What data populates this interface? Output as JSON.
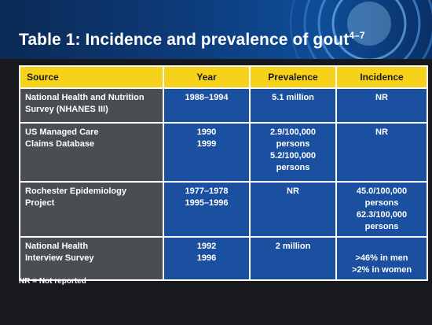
{
  "title": "Table 1: Incidence and prevalence of gout",
  "title_superscript": "4–7",
  "colors": {
    "header": "#f6d21b",
    "cell": "#1b4fa0",
    "source_cell": "#4a4d52",
    "band": "#0d3a78"
  },
  "table": {
    "headers": [
      "Source",
      "Year",
      "Prevalence",
      "Incidence"
    ],
    "rows": [
      {
        "source": [
          "National Health and Nutrition",
          "Survey (NHANES III)"
        ],
        "year": [
          "1988–1994"
        ],
        "prevalence": [
          "5.1 million"
        ],
        "incidence": [
          "NR"
        ]
      },
      {
        "source": [
          "US Managed Care",
          "Claims Database"
        ],
        "year": [
          "1990",
          "1999"
        ],
        "prevalence": [
          "2.9/100,000",
          "persons",
          "5.2/100,000",
          "persons"
        ],
        "incidence": [
          "NR"
        ]
      },
      {
        "source": [
          "Rochester Epidemiology",
          "Project"
        ],
        "year": [
          "1977–1978",
          "1995–1996"
        ],
        "prevalence": [
          "NR"
        ],
        "incidence": [
          "45.0/100,000",
          "persons",
          "62.3/100,000",
          "persons"
        ]
      },
      {
        "source": [
          "National Health",
          "Interview Survey"
        ],
        "year": [
          "1992",
          "1996"
        ],
        "prevalence": [
          "2 million"
        ],
        "incidence": [
          "",
          "",
          ">46% in men",
          ">2% in women"
        ]
      }
    ]
  },
  "footnote": "NR = Not reported"
}
